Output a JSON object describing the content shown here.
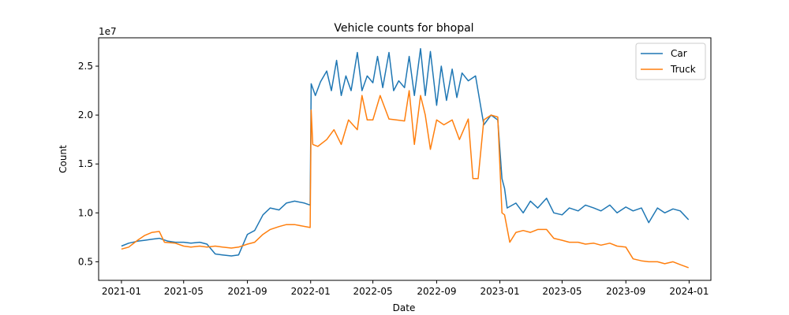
{
  "chart_data": {
    "type": "line",
    "title": "Vehicle counts for bhopal",
    "xlabel": "Date",
    "ylabel": "Count",
    "y_scale_label": "1e7",
    "x_range": [
      "2020-11-18",
      "2024-02-12"
    ],
    "ylim": [
      3100000,
      27900000
    ],
    "x_ticks": [
      {
        "date": "2021-01-01",
        "label": "2021-01"
      },
      {
        "date": "2021-05-01",
        "label": "2021-05"
      },
      {
        "date": "2021-09-01",
        "label": "2021-09"
      },
      {
        "date": "2022-01-01",
        "label": "2022-01"
      },
      {
        "date": "2022-05-01",
        "label": "2022-05"
      },
      {
        "date": "2022-09-01",
        "label": "2022-09"
      },
      {
        "date": "2023-01-01",
        "label": "2023-01"
      },
      {
        "date": "2023-05-01",
        "label": "2023-05"
      },
      {
        "date": "2023-09-01",
        "label": "2023-09"
      },
      {
        "date": "2024-01-01",
        "label": "2024-01"
      }
    ],
    "y_ticks": [
      {
        "value": 5000000,
        "label": "0.5"
      },
      {
        "value": 10000000,
        "label": "1.0"
      },
      {
        "value": 15000000,
        "label": "1.5"
      },
      {
        "value": 20000000,
        "label": "2.0"
      },
      {
        "value": 25000000,
        "label": "2.5"
      }
    ],
    "grid": false,
    "legend_position": "top-right",
    "series": [
      {
        "name": "Car",
        "color": "#1f77b4",
        "points": [
          [
            "2021-01-01",
            6600000
          ],
          [
            "2021-01-15",
            6900000
          ],
          [
            "2021-02-01",
            7100000
          ],
          [
            "2021-02-15",
            7200000
          ],
          [
            "2021-03-01",
            7300000
          ],
          [
            "2021-03-15",
            7400000
          ],
          [
            "2021-04-01",
            7100000
          ],
          [
            "2021-04-15",
            7000000
          ],
          [
            "2021-05-01",
            7000000
          ],
          [
            "2021-05-15",
            6900000
          ],
          [
            "2021-06-01",
            7000000
          ],
          [
            "2021-06-15",
            6800000
          ],
          [
            "2021-07-01",
            5800000
          ],
          [
            "2021-07-15",
            5700000
          ],
          [
            "2021-08-01",
            5600000
          ],
          [
            "2021-08-15",
            5700000
          ],
          [
            "2021-09-01",
            7800000
          ],
          [
            "2021-09-15",
            8200000
          ],
          [
            "2021-10-01",
            9800000
          ],
          [
            "2021-10-15",
            10500000
          ],
          [
            "2021-11-01",
            10300000
          ],
          [
            "2021-11-15",
            11000000
          ],
          [
            "2021-12-01",
            11200000
          ],
          [
            "2021-12-20",
            11000000
          ],
          [
            "2021-12-31",
            10800000
          ],
          [
            "2022-01-02",
            23200000
          ],
          [
            "2022-01-10",
            22000000
          ],
          [
            "2022-01-20",
            23400000
          ],
          [
            "2022-02-01",
            24500000
          ],
          [
            "2022-02-10",
            22500000
          ],
          [
            "2022-02-20",
            25600000
          ],
          [
            "2022-03-01",
            22000000
          ],
          [
            "2022-03-10",
            24000000
          ],
          [
            "2022-03-20",
            22500000
          ],
          [
            "2022-04-01",
            26400000
          ],
          [
            "2022-04-10",
            22500000
          ],
          [
            "2022-04-20",
            24000000
          ],
          [
            "2022-05-01",
            23300000
          ],
          [
            "2022-05-10",
            26000000
          ],
          [
            "2022-05-20",
            22800000
          ],
          [
            "2022-06-01",
            26400000
          ],
          [
            "2022-06-10",
            22500000
          ],
          [
            "2022-06-20",
            23500000
          ],
          [
            "2022-07-01",
            22800000
          ],
          [
            "2022-07-10",
            26000000
          ],
          [
            "2022-07-20",
            22000000
          ],
          [
            "2022-08-01",
            26800000
          ],
          [
            "2022-08-10",
            22000000
          ],
          [
            "2022-08-20",
            26500000
          ],
          [
            "2022-09-01",
            21000000
          ],
          [
            "2022-09-10",
            25000000
          ],
          [
            "2022-09-20",
            21500000
          ],
          [
            "2022-10-01",
            24700000
          ],
          [
            "2022-10-10",
            21800000
          ],
          [
            "2022-10-20",
            24300000
          ],
          [
            "2022-11-01",
            23500000
          ],
          [
            "2022-11-15",
            24000000
          ],
          [
            "2022-12-01",
            19000000
          ],
          [
            "2022-12-15",
            20000000
          ],
          [
            "2022-12-28",
            19500000
          ],
          [
            "2023-01-05",
            13500000
          ],
          [
            "2023-01-10",
            12500000
          ],
          [
            "2023-01-15",
            10500000
          ],
          [
            "2023-02-01",
            11000000
          ],
          [
            "2023-02-15",
            10000000
          ],
          [
            "2023-03-01",
            11200000
          ],
          [
            "2023-03-15",
            10500000
          ],
          [
            "2023-04-01",
            11500000
          ],
          [
            "2023-04-15",
            10000000
          ],
          [
            "2023-05-01",
            9800000
          ],
          [
            "2023-05-15",
            10500000
          ],
          [
            "2023-06-01",
            10200000
          ],
          [
            "2023-06-15",
            10800000
          ],
          [
            "2023-07-01",
            10500000
          ],
          [
            "2023-07-15",
            10200000
          ],
          [
            "2023-08-01",
            10800000
          ],
          [
            "2023-08-15",
            10000000
          ],
          [
            "2023-09-01",
            10600000
          ],
          [
            "2023-09-15",
            10200000
          ],
          [
            "2023-10-01",
            10500000
          ],
          [
            "2023-10-15",
            9000000
          ],
          [
            "2023-11-01",
            10500000
          ],
          [
            "2023-11-15",
            10000000
          ],
          [
            "2023-12-01",
            10400000
          ],
          [
            "2023-12-15",
            10200000
          ],
          [
            "2023-12-31",
            9300000
          ]
        ]
      },
      {
        "name": "Truck",
        "color": "#ff7f0e",
        "points": [
          [
            "2021-01-01",
            6300000
          ],
          [
            "2021-01-15",
            6500000
          ],
          [
            "2021-02-01",
            7200000
          ],
          [
            "2021-02-15",
            7700000
          ],
          [
            "2021-03-01",
            8000000
          ],
          [
            "2021-03-15",
            8100000
          ],
          [
            "2021-03-25",
            7000000
          ],
          [
            "2021-04-15",
            6900000
          ],
          [
            "2021-05-01",
            6600000
          ],
          [
            "2021-05-15",
            6500000
          ],
          [
            "2021-06-01",
            6600000
          ],
          [
            "2021-06-15",
            6500000
          ],
          [
            "2021-07-01",
            6600000
          ],
          [
            "2021-07-15",
            6500000
          ],
          [
            "2021-08-01",
            6400000
          ],
          [
            "2021-08-15",
            6500000
          ],
          [
            "2021-09-01",
            6800000
          ],
          [
            "2021-09-15",
            7000000
          ],
          [
            "2021-10-01",
            7800000
          ],
          [
            "2021-10-15",
            8300000
          ],
          [
            "2021-11-01",
            8600000
          ],
          [
            "2021-11-15",
            8800000
          ],
          [
            "2021-12-01",
            8800000
          ],
          [
            "2021-12-31",
            8500000
          ],
          [
            "2022-01-02",
            20500000
          ],
          [
            "2022-01-05",
            17000000
          ],
          [
            "2022-01-15",
            16800000
          ],
          [
            "2022-02-01",
            17500000
          ],
          [
            "2022-02-15",
            18500000
          ],
          [
            "2022-03-01",
            17000000
          ],
          [
            "2022-03-15",
            19500000
          ],
          [
            "2022-04-01",
            18500000
          ],
          [
            "2022-04-10",
            22000000
          ],
          [
            "2022-04-20",
            19500000
          ],
          [
            "2022-05-01",
            19500000
          ],
          [
            "2022-05-15",
            22000000
          ],
          [
            "2022-06-01",
            19600000
          ],
          [
            "2022-06-15",
            19500000
          ],
          [
            "2022-07-01",
            19400000
          ],
          [
            "2022-07-10",
            22500000
          ],
          [
            "2022-07-20",
            17000000
          ],
          [
            "2022-08-01",
            22000000
          ],
          [
            "2022-08-10",
            20000000
          ],
          [
            "2022-08-20",
            16500000
          ],
          [
            "2022-09-01",
            19500000
          ],
          [
            "2022-09-15",
            19000000
          ],
          [
            "2022-10-01",
            19500000
          ],
          [
            "2022-10-15",
            17500000
          ],
          [
            "2022-11-01",
            19600000
          ],
          [
            "2022-11-10",
            13500000
          ],
          [
            "2022-11-20",
            13500000
          ],
          [
            "2022-12-01",
            19500000
          ],
          [
            "2022-12-15",
            20000000
          ],
          [
            "2022-12-28",
            19800000
          ],
          [
            "2023-01-05",
            10000000
          ],
          [
            "2023-01-10",
            9800000
          ],
          [
            "2023-01-20",
            7000000
          ],
          [
            "2023-02-01",
            8000000
          ],
          [
            "2023-02-15",
            8200000
          ],
          [
            "2023-03-01",
            8000000
          ],
          [
            "2023-03-15",
            8300000
          ],
          [
            "2023-04-01",
            8300000
          ],
          [
            "2023-04-15",
            7400000
          ],
          [
            "2023-05-01",
            7200000
          ],
          [
            "2023-05-15",
            7000000
          ],
          [
            "2023-06-01",
            7000000
          ],
          [
            "2023-06-15",
            6800000
          ],
          [
            "2023-07-01",
            6900000
          ],
          [
            "2023-07-15",
            6700000
          ],
          [
            "2023-08-01",
            6900000
          ],
          [
            "2023-08-15",
            6600000
          ],
          [
            "2023-09-01",
            6500000
          ],
          [
            "2023-09-15",
            5300000
          ],
          [
            "2023-10-01",
            5100000
          ],
          [
            "2023-10-15",
            5000000
          ],
          [
            "2023-11-01",
            5000000
          ],
          [
            "2023-11-15",
            4800000
          ],
          [
            "2023-12-01",
            5000000
          ],
          [
            "2023-12-15",
            4700000
          ],
          [
            "2023-12-31",
            4400000
          ]
        ]
      }
    ]
  }
}
